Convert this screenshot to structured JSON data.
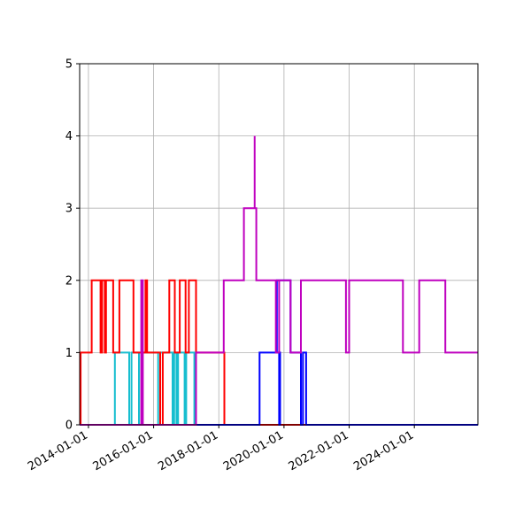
{
  "chart_data": {
    "type": "line",
    "subtype": "step",
    "title": "",
    "xlabel": "",
    "ylabel": "",
    "ylim": [
      0,
      5
    ],
    "xlim": [
      2013.73,
      2025.95
    ],
    "grid": true,
    "legend": null,
    "yticks": [
      "0",
      "1",
      "2",
      "3",
      "4",
      "5"
    ],
    "xticks": [
      {
        "label": "2014-01-01",
        "value": 2014.0
      },
      {
        "label": "2016-01-01",
        "value": 2016.0
      },
      {
        "label": "2018-01-01",
        "value": 2018.0
      },
      {
        "label": "2020-01-01",
        "value": 2020.0
      },
      {
        "label": "2022-01-01",
        "value": 2022.0
      },
      {
        "label": "2024-01-01",
        "value": 2024.0
      }
    ],
    "series": [
      {
        "name": "cyan",
        "color": "#17becf",
        "points": [
          [
            2013.73,
            0
          ],
          [
            2014.81,
            0
          ],
          [
            2014.81,
            1
          ],
          [
            2015.25,
            1
          ],
          [
            2015.25,
            0
          ],
          [
            2015.32,
            0
          ],
          [
            2015.32,
            1
          ],
          [
            2015.55,
            1
          ],
          [
            2015.55,
            0
          ],
          [
            2015.62,
            0
          ],
          [
            2015.62,
            1
          ],
          [
            2016.14,
            1
          ],
          [
            2016.14,
            0
          ],
          [
            2016.2,
            0
          ],
          [
            2016.2,
            1
          ],
          [
            2016.58,
            1
          ],
          [
            2016.58,
            0
          ],
          [
            2016.63,
            0
          ],
          [
            2016.63,
            1
          ],
          [
            2016.7,
            1
          ],
          [
            2016.7,
            0
          ],
          [
            2016.75,
            0
          ],
          [
            2016.75,
            1
          ],
          [
            2016.95,
            1
          ],
          [
            2016.95,
            0
          ],
          [
            2017.0,
            0
          ],
          [
            2017.0,
            1
          ],
          [
            2017.25,
            1
          ],
          [
            2017.25,
            0
          ],
          [
            2025.95,
            0
          ]
        ]
      },
      {
        "name": "red",
        "color": "#ff0000",
        "points": [
          [
            2013.73,
            0
          ],
          [
            2013.76,
            0
          ],
          [
            2013.76,
            1
          ],
          [
            2014.1,
            1
          ],
          [
            2014.1,
            2
          ],
          [
            2014.37,
            2
          ],
          [
            2014.37,
            1
          ],
          [
            2014.42,
            1
          ],
          [
            2014.42,
            2
          ],
          [
            2014.5,
            2
          ],
          [
            2014.5,
            1
          ],
          [
            2014.54,
            1
          ],
          [
            2014.54,
            2
          ],
          [
            2014.76,
            2
          ],
          [
            2014.76,
            1
          ],
          [
            2014.95,
            1
          ],
          [
            2014.95,
            2
          ],
          [
            2015.38,
            2
          ],
          [
            2015.38,
            1
          ],
          [
            2015.75,
            1
          ],
          [
            2015.75,
            2
          ],
          [
            2015.8,
            2
          ],
          [
            2015.8,
            1
          ],
          [
            2016.2,
            1
          ],
          [
            2016.2,
            0
          ],
          [
            2016.28,
            0
          ],
          [
            2016.28,
            1
          ],
          [
            2016.48,
            1
          ],
          [
            2016.48,
            2
          ],
          [
            2016.65,
            2
          ],
          [
            2016.65,
            1
          ],
          [
            2016.8,
            1
          ],
          [
            2016.8,
            2
          ],
          [
            2016.98,
            2
          ],
          [
            2016.98,
            1
          ],
          [
            2017.08,
            1
          ],
          [
            2017.08,
            2
          ],
          [
            2017.3,
            2
          ],
          [
            2017.3,
            1
          ],
          [
            2018.17,
            1
          ],
          [
            2018.17,
            0
          ],
          [
            2025.95,
            0
          ]
        ]
      },
      {
        "name": "blue",
        "color": "#0000ff",
        "points": [
          [
            2013.73,
            0
          ],
          [
            2019.25,
            0
          ],
          [
            2019.25,
            1
          ],
          [
            2019.85,
            1
          ],
          [
            2019.85,
            0
          ],
          [
            2019.88,
            0
          ],
          [
            2019.88,
            1
          ],
          [
            2019.78,
            1
          ],
          [
            2019.78,
            2
          ],
          [
            2020.2,
            2
          ],
          [
            2020.2,
            1
          ],
          [
            2020.52,
            1
          ],
          [
            2020.52,
            0
          ],
          [
            2020.58,
            0
          ],
          [
            2020.58,
            1
          ],
          [
            2020.68,
            1
          ],
          [
            2020.68,
            0
          ],
          [
            2025.95,
            0
          ]
        ]
      },
      {
        "name": "magenta",
        "color": "#bf00bf",
        "points": [
          [
            2013.73,
            0
          ],
          [
            2015.62,
            0
          ],
          [
            2015.62,
            2
          ],
          [
            2015.67,
            2
          ],
          [
            2015.67,
            0
          ],
          [
            2017.3,
            0
          ],
          [
            2017.3,
            1
          ],
          [
            2018.15,
            1
          ],
          [
            2018.15,
            2
          ],
          [
            2018.77,
            2
          ],
          [
            2018.77,
            3
          ],
          [
            2019.15,
            3
          ],
          [
            2019.15,
            2
          ],
          [
            2019.85,
            2
          ],
          [
            2019.85,
            1
          ],
          [
            2019.75,
            1
          ],
          [
            2019.75,
            2
          ],
          [
            2020.2,
            2
          ],
          [
            2020.2,
            1
          ],
          [
            2020.52,
            1
          ],
          [
            2020.52,
            2
          ],
          [
            2021.9,
            2
          ],
          [
            2021.9,
            1
          ],
          [
            2022.0,
            1
          ],
          [
            2022.0,
            2
          ],
          [
            2023.65,
            2
          ],
          [
            2023.65,
            1
          ],
          [
            2024.15,
            1
          ],
          [
            2024.15,
            2
          ],
          [
            2024.95,
            2
          ],
          [
            2024.95,
            1
          ],
          [
            2025.95,
            1
          ]
        ],
        "spike": {
          "x": 2019.1,
          "from": 3,
          "to": 4
        }
      }
    ]
  }
}
